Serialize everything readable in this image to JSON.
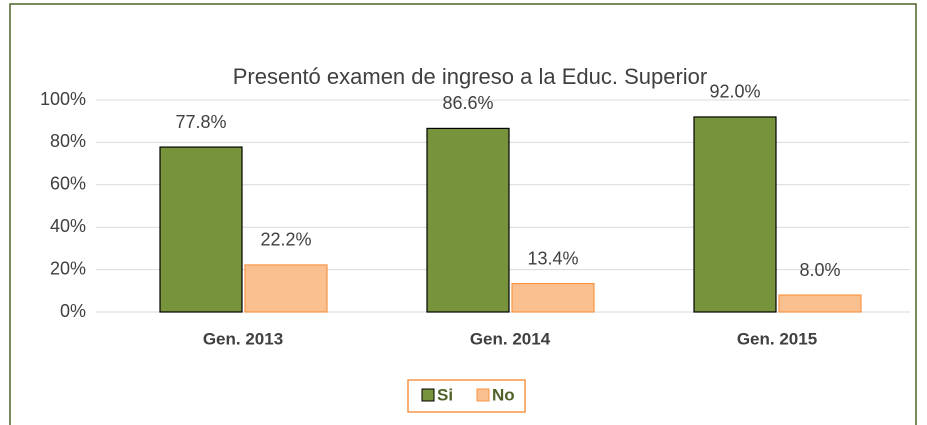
{
  "chart_data": {
    "type": "bar",
    "title": "Presentó examen de ingreso a la Educ. Superior",
    "categories": [
      "Gen. 2013",
      "Gen. 2014",
      "Gen. 2015"
    ],
    "series": [
      {
        "name": "Si",
        "color": "#77933c",
        "values": [
          77.8,
          86.6,
          92.0
        ],
        "value_labels": [
          "77.8%",
          "86.6%",
          "92.0%"
        ]
      },
      {
        "name": "No",
        "color": "#fac090",
        "values": [
          22.2,
          13.4,
          8.0
        ],
        "value_labels": [
          "22.2%",
          "13.4%",
          "8.0%"
        ]
      }
    ],
    "ylim": [
      0,
      100
    ],
    "yticks": [
      {
        "value": 0,
        "label": "0%"
      },
      {
        "value": 20,
        "label": "20%"
      },
      {
        "value": 40,
        "label": "40%"
      },
      {
        "value": 60,
        "label": "60%"
      },
      {
        "value": 80,
        "label": "80%"
      },
      {
        "value": 100,
        "label": "100%"
      }
    ],
    "grid": true,
    "legend": "bottom"
  }
}
